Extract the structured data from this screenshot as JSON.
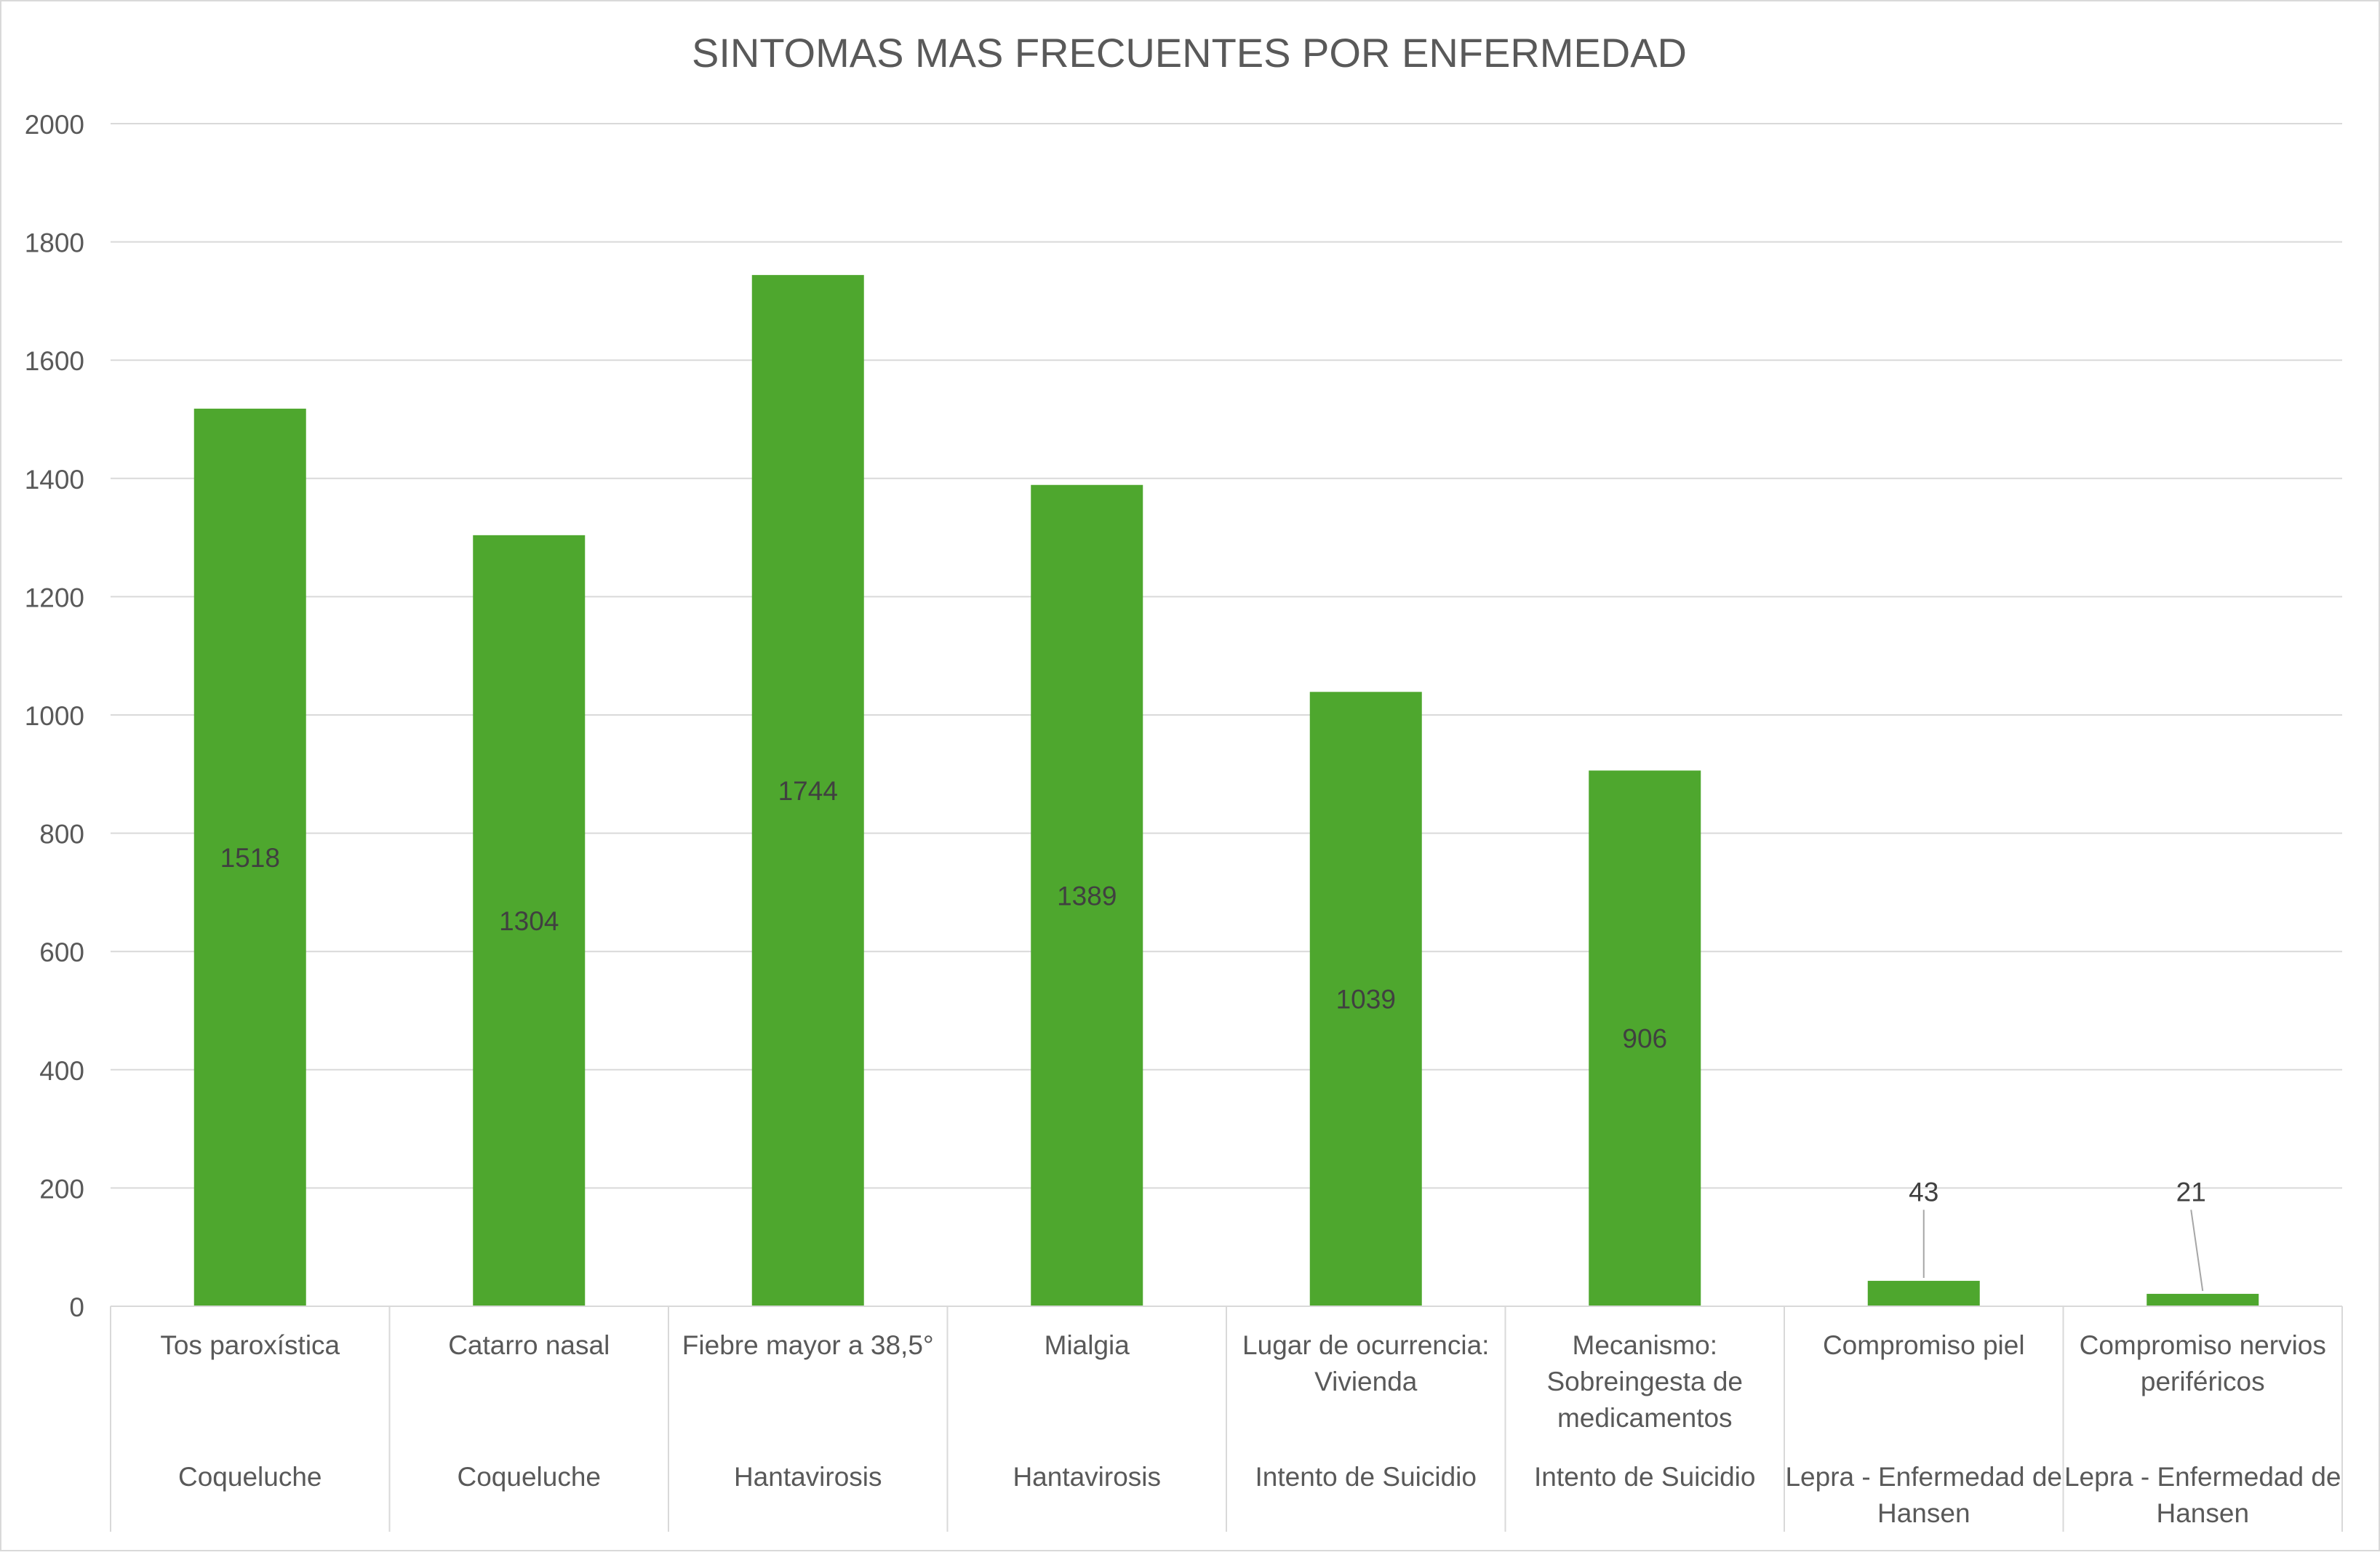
{
  "chart_data": {
    "type": "bar",
    "title": "SINTOMAS MAS FRECUENTES POR ENFERMEDAD",
    "xlabel": "",
    "ylabel": "",
    "ylim": [
      0,
      2000
    ],
    "yticks": [
      0,
      200,
      400,
      600,
      800,
      1000,
      1200,
      1400,
      1600,
      1800,
      2000
    ],
    "grid": true,
    "legend": "none",
    "bar_color": "#4ea72e",
    "categories": [
      "Tos paroxística",
      "Catarro nasal",
      "Fiebre mayor a 38,5°",
      "Mialgia",
      "Lugar de ocurrencia: Vivienda",
      "Mecanismo: Sobreingesta de medicamentos",
      "Compromiso piel",
      "Compromiso nervios periféricos"
    ],
    "category_lines": [
      [
        "Tos paroxística"
      ],
      [
        "Catarro nasal"
      ],
      [
        "Fiebre mayor a 38,5°"
      ],
      [
        "Mialgia"
      ],
      [
        "Lugar de ocurrencia:",
        "Vivienda"
      ],
      [
        "Mecanismo:",
        "Sobreingesta de",
        "medicamentos"
      ],
      [
        "Compromiso piel"
      ],
      [
        "Compromiso nervios",
        "periféricos"
      ]
    ],
    "groups": [
      "Coqueluche",
      "Coqueluche",
      "Hantavirosis",
      "Hantavirosis",
      "Intento de Suicidio",
      "Intento de Suicidio",
      "Lepra - Enfermedad de Hansen",
      "Lepra - Enfermedad de Hansen"
    ],
    "group_lines": [
      [
        "Coqueluche"
      ],
      [
        "Coqueluche"
      ],
      [
        "Hantavirosis"
      ],
      [
        "Hantavirosis"
      ],
      [
        "Intento de Suicidio"
      ],
      [
        "Intento de Suicidio"
      ],
      [
        "Lepra - Enfermedad de",
        "Hansen"
      ],
      [
        "Lepra - Enfermedad de",
        "Hansen"
      ]
    ],
    "values": [
      1518,
      1304,
      1744,
      1389,
      1039,
      906,
      43,
      21
    ],
    "data_labels": [
      "1518",
      "1304",
      "1744",
      "1389",
      "1039",
      "906",
      "43",
      "21"
    ]
  }
}
